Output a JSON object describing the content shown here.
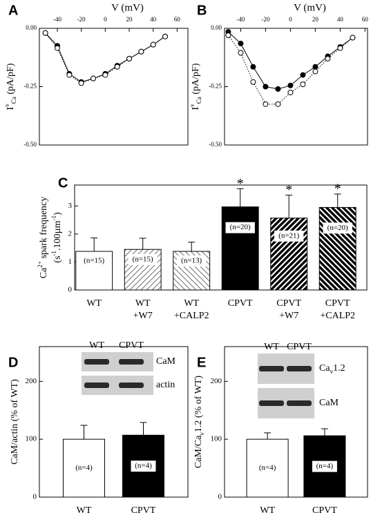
{
  "chart_data": [
    {
      "type": "line",
      "panel": "A",
      "xlabel": "V (mV)",
      "ylabel": [
        [
          {
            "text": "I"
          },
          {
            "text": "v",
            "style": "sup"
          },
          {
            "text": "Ca",
            "style": "sub"
          },
          {
            "text": " (pA/pF)"
          }
        ]
      ],
      "x": [
        -50,
        -40,
        -30,
        -20,
        -10,
        0,
        10,
        20,
        30,
        40,
        50
      ],
      "series": [
        {
          "marker": "filled",
          "line": "solid",
          "values": [
            -0.02,
            -0.075,
            -0.195,
            -0.23,
            -0.215,
            -0.195,
            -0.16,
            -0.13,
            -0.1,
            -0.07,
            -0.035
          ]
        },
        {
          "marker": "open",
          "line": "dotted",
          "values": [
            -0.02,
            -0.085,
            -0.2,
            -0.235,
            -0.215,
            -0.2,
            -0.165,
            -0.13,
            -0.1,
            -0.07,
            -0.035
          ]
        }
      ],
      "xlim": [
        -55,
        69
      ],
      "xticks": [
        -40,
        -20,
        0,
        20,
        40,
        60
      ],
      "ylim": [
        -0.5,
        0
      ],
      "yticks": [
        {
          "value": 0,
          "label": "0.00"
        },
        {
          "value": -0.25,
          "label": "-0.25"
        },
        {
          "value": -0.5,
          "label": "-0.50"
        }
      ],
      "color": "#000000"
    },
    {
      "type": "line",
      "panel": "B",
      "xlabel": "V (mV)",
      "ylabel": [
        [
          {
            "text": "I"
          },
          {
            "text": "v",
            "style": "sup"
          },
          {
            "text": "Ca",
            "style": "sub"
          },
          {
            "text": " (pA/pF)"
          }
        ]
      ],
      "x": [
        -50,
        -40,
        -30,
        -20,
        -10,
        0,
        10,
        20,
        30,
        40,
        50
      ],
      "series": [
        {
          "marker": "filled",
          "line": "solid",
          "values": [
            -0.015,
            -0.065,
            -0.165,
            -0.25,
            -0.26,
            -0.245,
            -0.2,
            -0.165,
            -0.12,
            -0.08,
            -0.04
          ]
        },
        {
          "marker": "open",
          "line": "dotted",
          "values": [
            -0.03,
            -0.105,
            -0.23,
            -0.325,
            -0.325,
            -0.275,
            -0.24,
            -0.185,
            -0.13,
            -0.085,
            -0.04
          ]
        }
      ],
      "xlim": [
        -53,
        62
      ],
      "xticks": [
        -40,
        -20,
        0,
        20,
        40,
        60
      ],
      "ylim": [
        -0.5,
        0
      ],
      "yticks": [
        {
          "value": 0,
          "label": "0.00"
        },
        {
          "value": -0.25,
          "label": "-0.25"
        },
        {
          "value": -0.5,
          "label": "-0.50"
        }
      ],
      "color": "#000000"
    },
    {
      "type": "bar",
      "panel": "C",
      "ylabel": [
        [
          {
            "text": "Ca"
          },
          {
            "text": "2+",
            "style": "sup"
          },
          {
            "text": " spark frequency"
          }
        ],
        [
          {
            "text": "(s"
          },
          {
            "text": "-1",
            "style": "sup"
          },
          {
            "text": ".100µm"
          },
          {
            "text": "-1",
            "style": "sup"
          },
          {
            "text": ")"
          }
        ]
      ],
      "categories": [
        [
          "WT"
        ],
        [
          "WT",
          "+W7"
        ],
        [
          "WT",
          "+CALP2"
        ],
        [
          "CPVT"
        ],
        [
          "CPVT",
          "+W7"
        ],
        [
          "CPVT",
          "+CALP2"
        ]
      ],
      "values": [
        1.38,
        1.45,
        1.38,
        2.97,
        2.57,
        2.95
      ],
      "errors": [
        0.48,
        0.4,
        0.33,
        0.65,
        0.82,
        0.48
      ],
      "colors": [
        "#ffffff",
        "#ffffff",
        "#ffffff",
        "#000000",
        "#000000",
        "#000000"
      ],
      "pattern": [
        "solid",
        "/",
        "\\",
        "solid",
        "/",
        "\\"
      ],
      "annotations": [
        "(n=15)",
        "(n=15)",
        "(n=13)",
        "(n=20)",
        "(n=21)",
        "(n=20)"
      ],
      "markers": [
        null,
        null,
        null,
        "*",
        "*",
        "*"
      ],
      "ylim": [
        0,
        3.75
      ],
      "yticks": [
        0,
        1,
        2,
        3
      ]
    },
    {
      "type": "bar",
      "panel": "D",
      "ylabel": [
        [
          {
            "text": "CaM/actin (% of WT)"
          }
        ]
      ],
      "categories": [
        [
          "WT"
        ],
        [
          "CPVT"
        ]
      ],
      "values": [
        100,
        107
      ],
      "errors": [
        24,
        22
      ],
      "colors": [
        "#ffffff",
        "#000000"
      ],
      "pattern": [
        "solid",
        "solid"
      ],
      "annotations": [
        "(n=4)",
        "(n=4)"
      ],
      "ylim": [
        0,
        260
      ],
      "yticks": [
        0,
        100,
        200
      ],
      "blot": {
        "columns": [
          "WT",
          "CPVT"
        ],
        "rows": [
          [
            {
              "text": "CaM"
            }
          ],
          [
            {
              "text": "actin"
            }
          ]
        ]
      }
    },
    {
      "type": "bar",
      "panel": "E",
      "ylabel": [
        [
          {
            "text": "CaM/Ca"
          },
          {
            "text": "v",
            "style": "sub"
          },
          {
            "text": "1.2 (% of WT)"
          }
        ]
      ],
      "categories": [
        [
          "WT"
        ],
        [
          "CPVT"
        ]
      ],
      "values": [
        100,
        106
      ],
      "errors": [
        11,
        12
      ],
      "colors": [
        "#ffffff",
        "#000000"
      ],
      "pattern": [
        "solid",
        "solid"
      ],
      "annotations": [
        "(n=4)",
        "(n=4)"
      ],
      "ylim": [
        0,
        260
      ],
      "yticks": [
        0,
        100,
        200
      ],
      "blot": {
        "columns": [
          "WT",
          "CPVT"
        ],
        "rows": [
          [
            {
              "text": "Ca"
            },
            {
              "text": "v",
              "style": "sub"
            },
            {
              "text": "1.2"
            }
          ],
          [
            {
              "text": "CaM"
            }
          ]
        ]
      }
    }
  ]
}
